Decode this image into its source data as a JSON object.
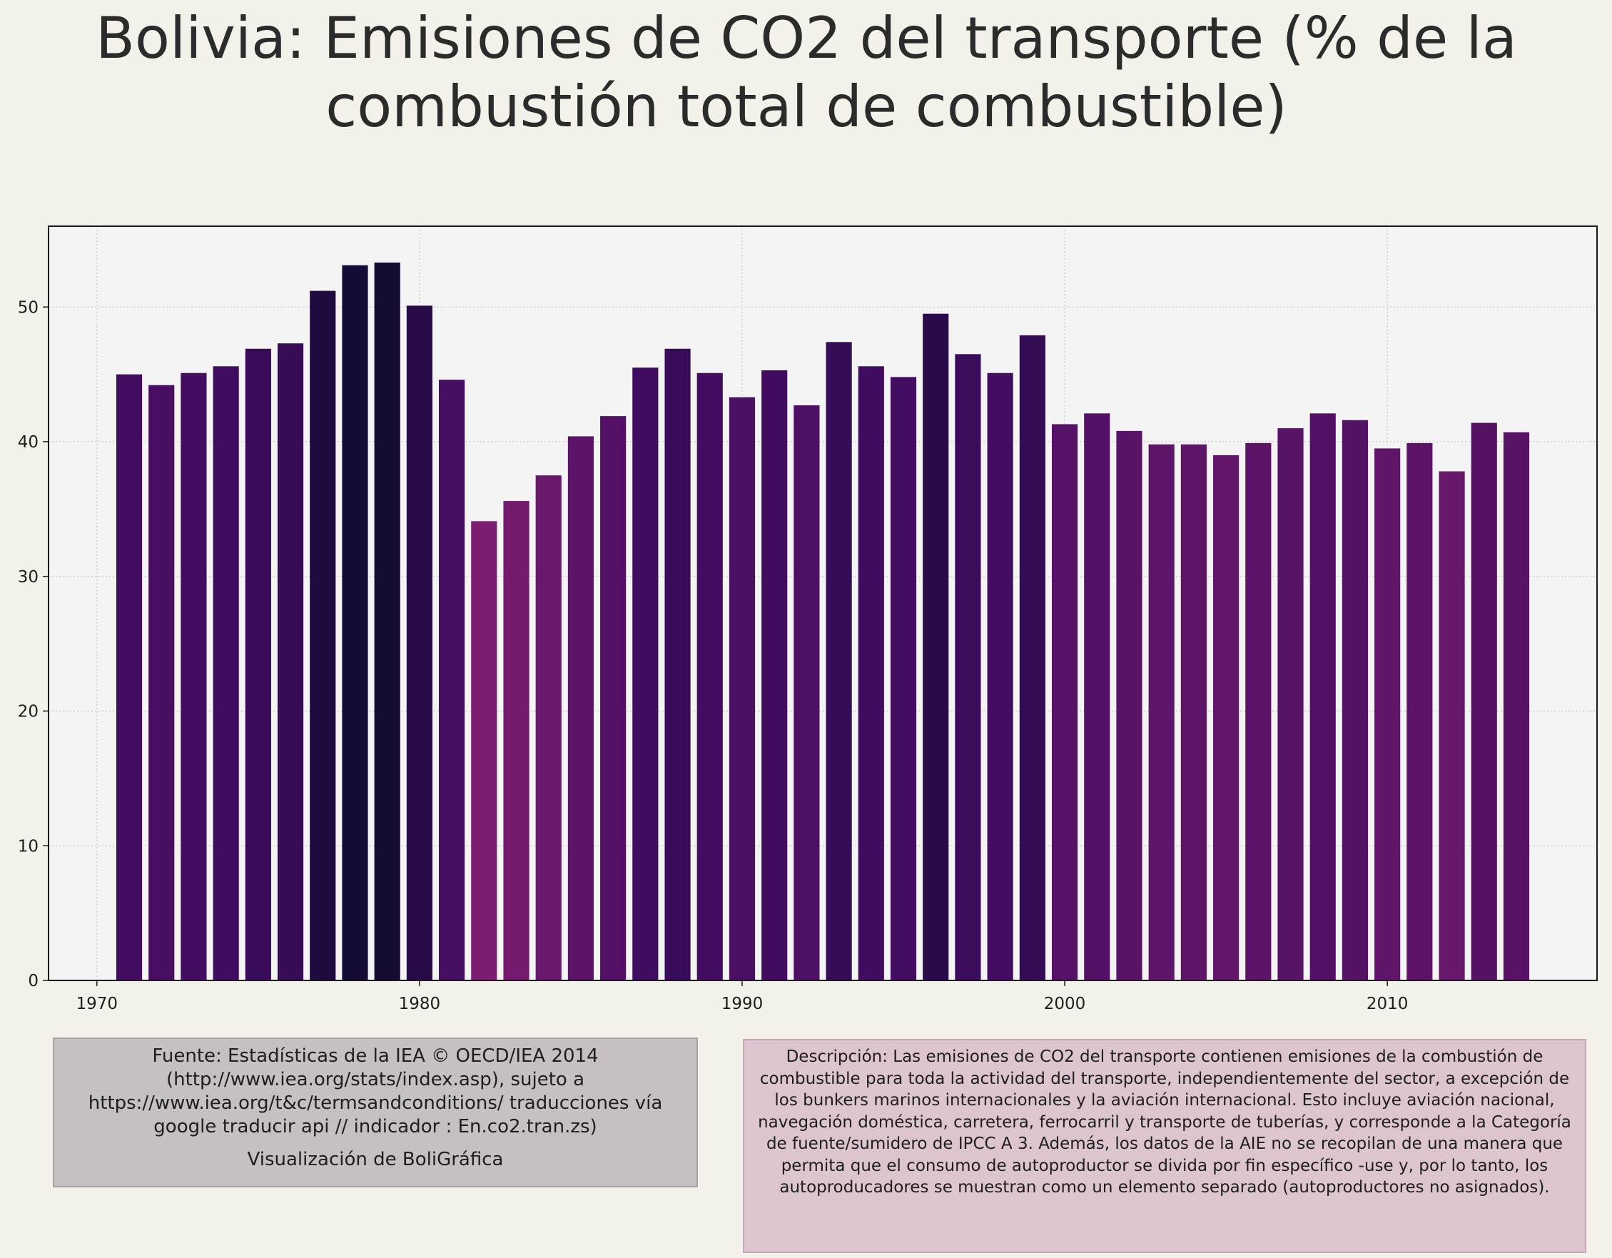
{
  "title": "Bolivia:  Emisiones de CO2 del transporte (% de la combustión total de combustible)",
  "chart_data": {
    "type": "bar",
    "x": [
      1971,
      1972,
      1973,
      1974,
      1975,
      1976,
      1977,
      1978,
      1979,
      1980,
      1981,
      1982,
      1983,
      1984,
      1985,
      1986,
      1987,
      1988,
      1989,
      1990,
      1991,
      1992,
      1993,
      1994,
      1995,
      1996,
      1997,
      1998,
      1999,
      2000,
      2001,
      2002,
      2003,
      2004,
      2005,
      2006,
      2007,
      2008,
      2009,
      2010,
      2011,
      2012,
      2013,
      2014
    ],
    "values": [
      45.0,
      44.2,
      45.1,
      45.6,
      46.9,
      47.3,
      51.2,
      53.1,
      53.3,
      50.1,
      44.6,
      34.1,
      35.6,
      37.5,
      40.4,
      41.9,
      45.5,
      46.9,
      45.1,
      43.3,
      45.3,
      42.7,
      47.4,
      45.6,
      44.8,
      49.5,
      46.5,
      45.1,
      47.9,
      41.3,
      42.1,
      40.8,
      39.8,
      39.8,
      39.0,
      39.9,
      41.0,
      42.1,
      41.6,
      39.5,
      39.9,
      37.8,
      41.4,
      40.7
    ],
    "xticks": [
      "1970",
      "1980",
      "1990",
      "2000",
      "2010"
    ],
    "yticks": [
      "0",
      "10",
      "20",
      "30",
      "40",
      "50"
    ],
    "xlim": [
      1968.5,
      2016.5
    ],
    "ylim": [
      0,
      56
    ],
    "xlabel": "",
    "ylabel": "",
    "grid": true,
    "colormap": "magma (darker bars = higher values)",
    "colors": {
      "plot_background": "#f4f4f4",
      "page_background": "#f4f0ea",
      "bar_low": "#7c1d6f",
      "bar_high": "#150b33"
    }
  },
  "source": {
    "text": "Fuente: Estadísticas de la IEA © OECD/IEA 2014 (http://www.iea.org/stats/index.asp), sujeto a https://www.iea.org/t&c/termsandconditions/ traducciones vía google traducir api // indicador : En.co2.tran.zs)",
    "credit": "Visualización de BoliGráfica"
  },
  "description": "Descripción: Las emisiones de CO2 del transporte contienen emisiones de la combustión de combustible para toda la actividad del transporte, independientemente del sector, a excepción de los bunkers marinos internacionales y la aviación internacional. Esto incluye aviación nacional, navegación doméstica, carretera, ferrocarril y transporte de tuberías, y corresponde a la Categoría de fuente/sumidero de IPCC A 3. Además, los datos de la AIE no se recopilan de una manera que permita que el consumo de autoproductor se divida por fin específico -use y, por lo tanto, los autoproducadores se muestran como un elemento separado (autoproductores no asignados)."
}
